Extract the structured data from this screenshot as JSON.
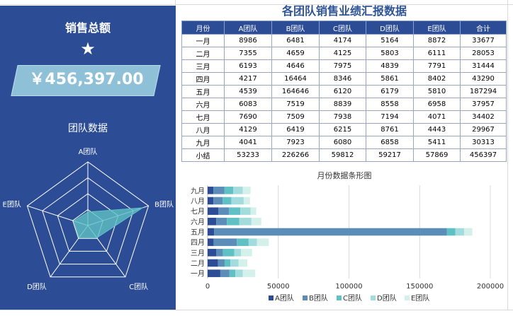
{
  "dashboard": {
    "title": "销售总额",
    "star": "★",
    "total": "￥456,397.00",
    "radar_title": "团队数据",
    "radar_axes": [
      "A团队",
      "B团队",
      "C团队",
      "D团队",
      "E团队"
    ]
  },
  "table": {
    "title": "各团队销售业绩汇报数据",
    "headers": [
      "月份",
      "A团队",
      "B团队",
      "C团队",
      "D团队",
      "E团队",
      "合计"
    ],
    "rows": [
      [
        "一月",
        "8986",
        "6481",
        "4174",
        "5164",
        "8872",
        "33677"
      ],
      [
        "二月",
        "7355",
        "4659",
        "4125",
        "5803",
        "6111",
        "28053"
      ],
      [
        "三月",
        "6193",
        "4646",
        "7975",
        "4839",
        "7791",
        "31444"
      ],
      [
        "四月",
        "4217",
        "16464",
        "8346",
        "5861",
        "8402",
        "43290"
      ],
      [
        "五月",
        "4539",
        "164646",
        "6120",
        "6179",
        "5810",
        "187294"
      ],
      [
        "六月",
        "6083",
        "7519",
        "8839",
        "8558",
        "6958",
        "37957"
      ],
      [
        "七月",
        "7690",
        "7509",
        "7938",
        "7194",
        "4071",
        "34402"
      ],
      [
        "八月",
        "4129",
        "6419",
        "6215",
        "8761",
        "4443",
        "29967"
      ],
      [
        "九月",
        "4041",
        "7923",
        "6080",
        "6858",
        "5411",
        "30313"
      ],
      [
        "小结",
        "53233",
        "226266",
        "59812",
        "59217",
        "57869",
        "456397"
      ]
    ]
  },
  "colors": {
    "panel": "#2c4d96",
    "A": "#2c4d96",
    "B": "#5b8db8",
    "C": "#5fc1c4",
    "D": "#a3dcdc",
    "E": "#d3f1ea"
  },
  "chart_data": [
    {
      "type": "radar",
      "title": "团队数据",
      "axes": [
        "A团队",
        "B团队",
        "C团队",
        "D团队",
        "E团队"
      ],
      "values": [
        53233,
        226266,
        59812,
        59217,
        57869
      ],
      "rmax": 250000,
      "rings": 4
    },
    {
      "type": "bar",
      "orientation": "horizontal",
      "stacked": true,
      "title": "月份数据条形图",
      "categories": [
        "一月",
        "二月",
        "三月",
        "四月",
        "五月",
        "六月",
        "七月",
        "八月",
        "九月"
      ],
      "series": [
        {
          "name": "A团队",
          "values": [
            8986,
            7355,
            6193,
            4217,
            4539,
            6083,
            7690,
            4129,
            4041
          ]
        },
        {
          "name": "B团队",
          "values": [
            6481,
            4659,
            4646,
            16464,
            164646,
            7519,
            7509,
            6419,
            7923
          ]
        },
        {
          "name": "C团队",
          "values": [
            4174,
            4125,
            7975,
            8346,
            6120,
            8839,
            7938,
            6215,
            6080
          ]
        },
        {
          "name": "D团队",
          "values": [
            5164,
            5803,
            4839,
            5861,
            6179,
            8558,
            7194,
            8761,
            6858
          ]
        },
        {
          "name": "E团队",
          "values": [
            8872,
            6111,
            7791,
            8402,
            5810,
            6958,
            4071,
            4443,
            5411
          ]
        }
      ],
      "xlim": [
        0,
        200000
      ],
      "xticks": [
        "0",
        "50000",
        "100000",
        "150000",
        "200000"
      ],
      "grid": true,
      "legend": "bottom"
    }
  ]
}
